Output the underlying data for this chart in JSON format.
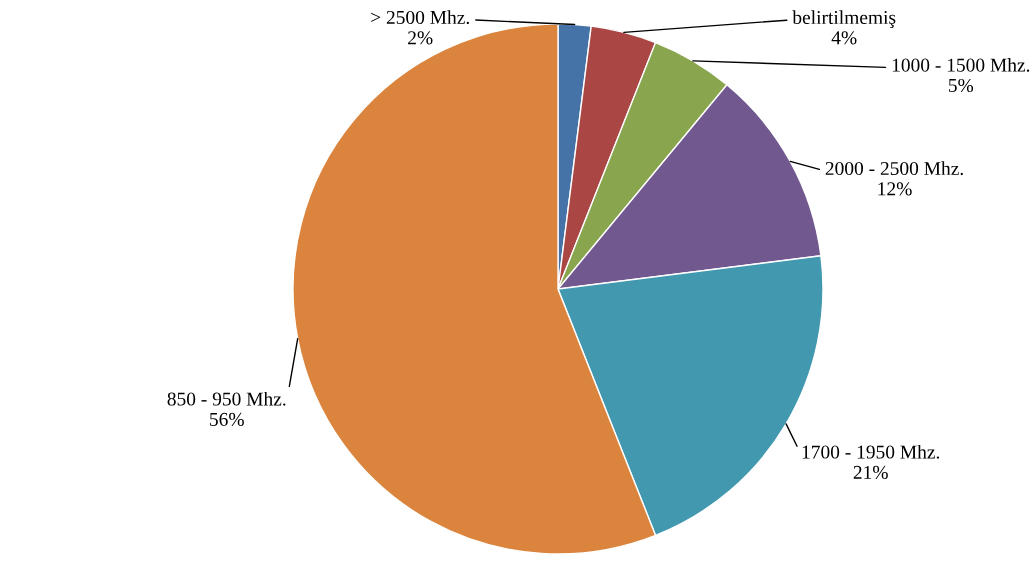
{
  "chart_data": {
    "type": "pie",
    "categories": [
      "> 2500 Mhz.",
      "belirtilmemiş",
      "1000 - 1500 Mhz.",
      "2000 - 2500 Mhz.",
      "1700 - 1950 Mhz.",
      "850 - 950 Mhz."
    ],
    "values": [
      2,
      4,
      5,
      12,
      21,
      56
    ],
    "value_labels": [
      "2%",
      "4%",
      "5%",
      "12%",
      "21%",
      "56%"
    ],
    "colors": [
      "#4572a7",
      "#aa4643",
      "#89a54e",
      "#71588f",
      "#4198af",
      "#db843d"
    ],
    "legend": false
  }
}
